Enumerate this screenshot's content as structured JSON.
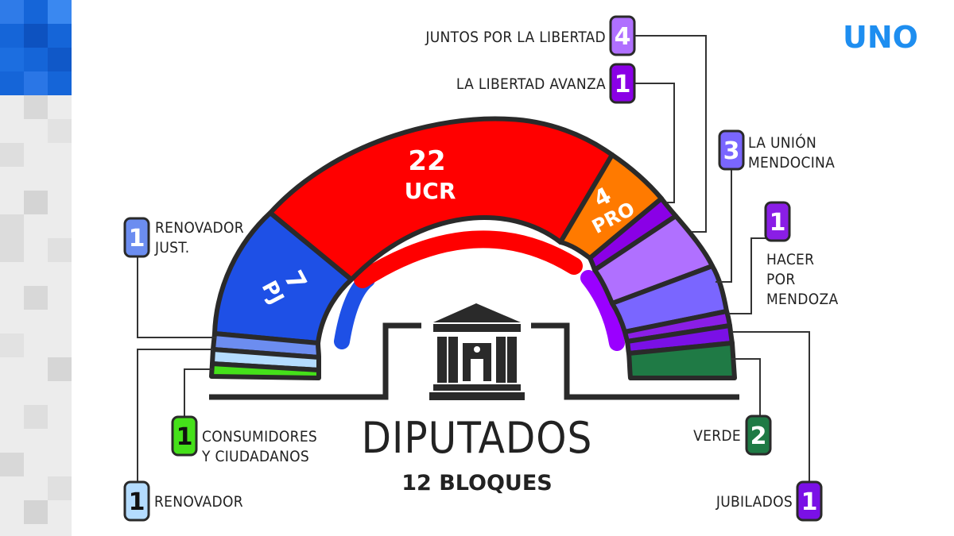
{
  "logo": "UNO",
  "title": "DIPUTADOS",
  "subtitle": "12 BLOQUES",
  "colors": {
    "ucr": "#ff0000",
    "pj": "#1e50e6",
    "pro": "#ff7a00",
    "libertad_avanza": "#8a00e6",
    "juntos_libertad": "#b070ff",
    "union_mendocina": "#7a66ff",
    "hacer_mendoza": "#8a1ee6",
    "jubilados": "#7a10e6",
    "verde": "#1f7a45",
    "renovador_just": "#6c8df0",
    "renovador": "#b4dcff",
    "consumidores": "#45e01a",
    "outline": "#2a2a2a"
  },
  "segments": [
    {
      "key": "ucr",
      "count": "22",
      "name": "UCR"
    },
    {
      "key": "pj",
      "count": "7",
      "name": "PJ"
    },
    {
      "key": "pro",
      "count": "4",
      "name": "PRO"
    }
  ],
  "blocs": [
    {
      "key": "renovador_just",
      "count": "1",
      "label_line1": "RENOVADOR",
      "label_line2": "JUST."
    },
    {
      "key": "consumidores",
      "count": "1",
      "label_line1": "CONSUMIDORES",
      "label_line2": "Y CIUDADANOS"
    },
    {
      "key": "renovador",
      "count": "1",
      "label_line1": "RENOVADOR"
    },
    {
      "key": "juntos_libertad",
      "count": "4",
      "label_line1": "JUNTOS POR LA LIBERTAD"
    },
    {
      "key": "libertad_avanza",
      "count": "1",
      "label_line1": "LA LIBERTAD AVANZA"
    },
    {
      "key": "union_mendocina",
      "count": "3",
      "label_line1": "LA UNIÓN",
      "label_line2": "MENDOCINA"
    },
    {
      "key": "hacer_mendoza",
      "count": "1",
      "label_line1": "HACER",
      "label_line2": "POR",
      "label_line3": "MENDOZA"
    },
    {
      "key": "verde",
      "count": "2",
      "label_line1": "VERDE"
    },
    {
      "key": "jubilados",
      "count": "1",
      "label_line1": "JUBILADOS"
    }
  ]
}
